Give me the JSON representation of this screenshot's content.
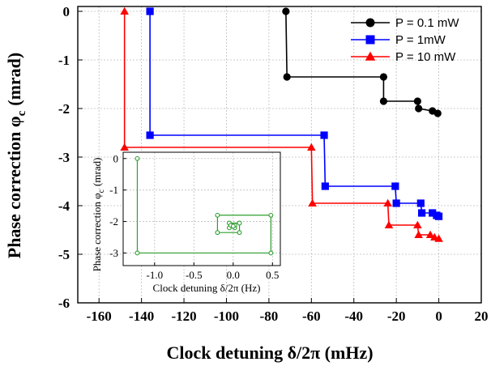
{
  "chart_data": [
    {
      "type": "line",
      "step": true,
      "title": "",
      "xlabel": "Clock detuning δ/2π (mHz)",
      "ylabel": "Phase correction φ",
      "ylabel_sub": "c",
      "ylabel_unit": "(mrad)",
      "xlim": [
        -170,
        20
      ],
      "ylim": [
        -6,
        0.1
      ],
      "xticks": [
        -160,
        -140,
        -120,
        -100,
        -80,
        -60,
        -40,
        -20,
        0,
        20
      ],
      "yticks": [
        0,
        -1,
        -2,
        -3,
        -4,
        -5,
        -6
      ],
      "grid": true,
      "legend_position": "top-right",
      "series": [
        {
          "name": "P = 0.1 mW",
          "color": "#000000",
          "marker": "circle",
          "x": [
            -72,
            -71.5,
            -26,
            -26,
            -10,
            -9.5,
            -3,
            -0.5
          ],
          "y": [
            0,
            -1.35,
            -1.35,
            -1.85,
            -1.85,
            -2.0,
            -2.05,
            -2.1
          ]
        },
        {
          "name": "P = 1mW",
          "color": "#0000ff",
          "marker": "square",
          "x": [
            -136,
            -136,
            -54,
            -53.5,
            -20.5,
            -20,
            -8.5,
            -8,
            -3,
            -1,
            0
          ],
          "y": [
            0,
            -2.55,
            -2.55,
            -3.6,
            -3.6,
            -3.95,
            -3.95,
            -4.15,
            -4.15,
            -4.2,
            -4.22
          ]
        },
        {
          "name": "P = 10 mW",
          "color": "#ff0000",
          "marker": "triangle",
          "x": [
            -148,
            -148,
            -60,
            -59.5,
            -24,
            -23.5,
            -10,
            -9.5,
            -4,
            -2,
            0
          ],
          "y": [
            0,
            -2.8,
            -2.8,
            -3.95,
            -3.95,
            -4.4,
            -4.4,
            -4.6,
            -4.6,
            -4.65,
            -4.68
          ]
        }
      ]
    },
    {
      "type": "line",
      "step": true,
      "title": "",
      "xlabel": "Clock detuning δ/2π (Hz)",
      "ylabel": "Phase correction φ",
      "ylabel_sub": "c",
      "ylabel_unit": "(mrad)",
      "xlim": [
        -1.4,
        0.6
      ],
      "ylim": [
        -3.4,
        0.2
      ],
      "xticks": [
        -1.0,
        -0.5,
        0.0,
        0.5
      ],
      "xtick_labels": [
        "-1.0",
        "-0.5",
        "0.0",
        "0.5"
      ],
      "yticks": [
        0,
        -1,
        -2,
        -3
      ],
      "grid": true,
      "series": [
        {
          "color": "#2e9e2e",
          "marker": "open-circle",
          "x": [
            -1.22,
            -1.22,
            0.48,
            0.48,
            -0.2,
            -0.2,
            0.08,
            0.08,
            -0.05,
            -0.05,
            0.02,
            0.02,
            -0.03,
            0.0
          ],
          "y": [
            0,
            -3.0,
            -3.0,
            -1.8,
            -1.8,
            -2.35,
            -2.35,
            -2.05,
            -2.05,
            -2.2,
            -2.2,
            -2.12,
            -2.12,
            -2.15
          ]
        }
      ]
    }
  ]
}
